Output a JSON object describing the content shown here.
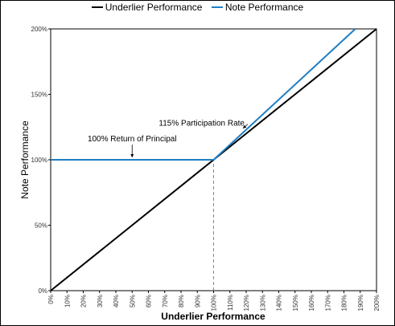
{
  "chart_data": {
    "type": "line",
    "title": "",
    "xlabel": "Underlier Performance",
    "ylabel": "Note Performance",
    "xlim": [
      0,
      200
    ],
    "ylim": [
      0,
      200
    ],
    "x_ticks": [
      "0%",
      "10%",
      "20%",
      "30%",
      "40%",
      "50%",
      "60%",
      "70%",
      "80%",
      "90%",
      "100%",
      "110%",
      "120%",
      "130%",
      "140%",
      "150%",
      "160%",
      "170%",
      "180%",
      "190%",
      "200%"
    ],
    "y_ticks": [
      "0%",
      "50%",
      "100%",
      "150%",
      "200%"
    ],
    "grid": false,
    "legend_position": "top",
    "series": [
      {
        "name": "Underlier Performance",
        "color": "#000000",
        "x": [
          0,
          200
        ],
        "y": [
          0,
          200
        ]
      },
      {
        "name": "Note Performance",
        "color": "#1f7fc4",
        "x": [
          0,
          100,
          187
        ],
        "y": [
          100,
          100,
          200
        ]
      }
    ],
    "reference_line": {
      "x": 100,
      "y_from": 0,
      "y_to": 100,
      "style": "dashed"
    },
    "annotations": [
      {
        "text": "100% Return of Principal",
        "text_x": 50,
        "text_y": 114,
        "arrow_to_x": 50,
        "arrow_to_y": 100
      },
      {
        "text": "115% Participation Rate",
        "text_x": 119,
        "text_y": 126,
        "arrow_to_x": 118,
        "arrow_to_y": 124
      }
    ]
  }
}
